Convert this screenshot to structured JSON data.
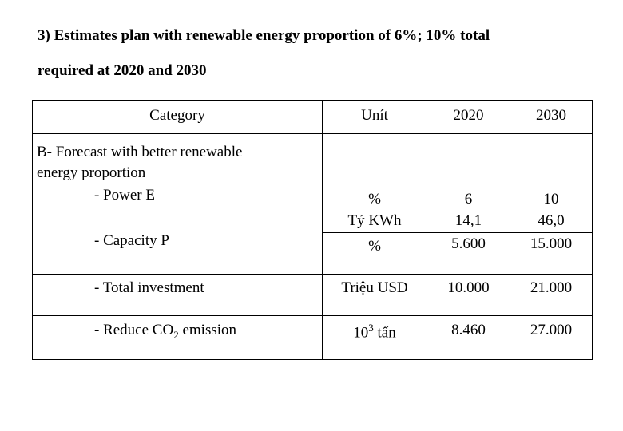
{
  "heading": {
    "line1": "3) Estimates plan with renewable energy proportion of 6%; 10% total",
    "line2": "required at 2020 and 2030"
  },
  "table": {
    "headers": {
      "category": "Category",
      "unit": "Unít",
      "y2020": "2020",
      "y2030": "2030"
    },
    "section": {
      "line1": "B- Forecast with better renewable",
      "line2": "energy proportion"
    },
    "rows": [
      {
        "category": "- Power E",
        "unit_line1": "%",
        "unit_line2": "Tỷ KWh",
        "y2020_line1": "6",
        "y2020_line2": "14,1",
        "y2030_line1": "10",
        "y2030_line2": "46,0"
      },
      {
        "category": "- Capacity P",
        "unit": "%",
        "y2020": "5.600",
        "y2030": "15.000"
      },
      {
        "category": "- Total investment",
        "unit": "Triệu USD",
        "y2020": "10.000",
        "y2030": "21.000"
      },
      {
        "category_prefix": "- Reduce CO",
        "category_sub": "2",
        "category_suffix": " emission",
        "unit_base": "10",
        "unit_sup": "3",
        "unit_suffix": " tấn",
        "y2020": "8.460",
        "y2030": "27.000"
      }
    ]
  }
}
